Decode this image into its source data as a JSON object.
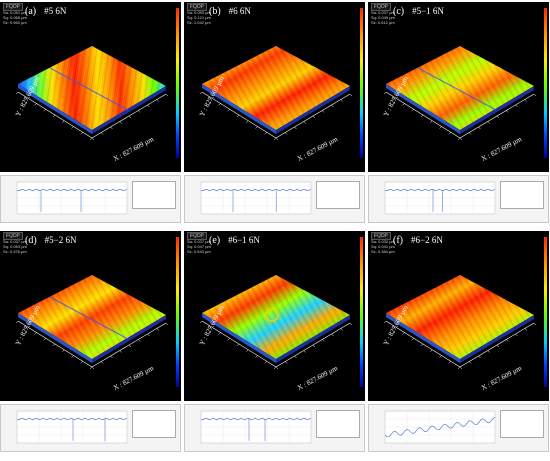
{
  "panels": [
    {
      "letter": "(a)",
      "sample": "#5 6N",
      "x_axis": "X : 827.609 µm",
      "y_axis": "Y : 827.609 µm",
      "badge": "FQDP",
      "stats": [
        "Sa: 0.051 µm",
        "Sq: 0.065 µm",
        "Sz: 0.963 µm"
      ]
    },
    {
      "letter": "(b)",
      "sample": "#6 6N",
      "x_axis": "X : 827.609 µm",
      "y_axis": "Y : 827.609 µm",
      "badge": "FQDP",
      "stats": [
        "Sa: 0.093 µm",
        "Sq: 0.121 µm",
        "Sz: 1.042 µm"
      ]
    },
    {
      "letter": "(c)",
      "sample": "#5−1 6N",
      "x_axis": "X : 827.609 µm",
      "y_axis": "Y : 827.609 µm",
      "badge": "FQDP",
      "stats": [
        "Sa: 0.037 µm",
        "Sq: 0.049 µm",
        "Sz: 0.612 µm"
      ]
    },
    {
      "letter": "(d)",
      "sample": "#5−2 6N",
      "x_axis": "X : 827.609 µm",
      "y_axis": "Y : 827.609 µm",
      "badge": "FQDP",
      "stats": [
        "Sa: 0.037 µm",
        "Sq: 0.053 µm",
        "Sz: 0.978 µm"
      ]
    },
    {
      "letter": "(e)",
      "sample": "#6−1 6N",
      "x_axis": "X : 827.609 µm",
      "y_axis": "Y : 827.609 µm",
      "badge": "FQDP",
      "stats": [
        "Sa: 0.037 µm",
        "Sq: 0.047 µm",
        "Sz: 0.543 µm"
      ]
    },
    {
      "letter": "(f)",
      "sample": "#6−2 6N",
      "x_axis": "X : 827.609 µm",
      "y_axis": "Y : 827.609 µm",
      "badge": "FQDP",
      "stats": [
        "Sa: 0.032 µm",
        "Sq: 0.041 µm",
        "Sz: 0.384 µm"
      ]
    }
  ],
  "colors": {
    "background": "#000000",
    "high": "#ff2a00",
    "mid": "#ffee00",
    "low": "#0000a0"
  }
}
